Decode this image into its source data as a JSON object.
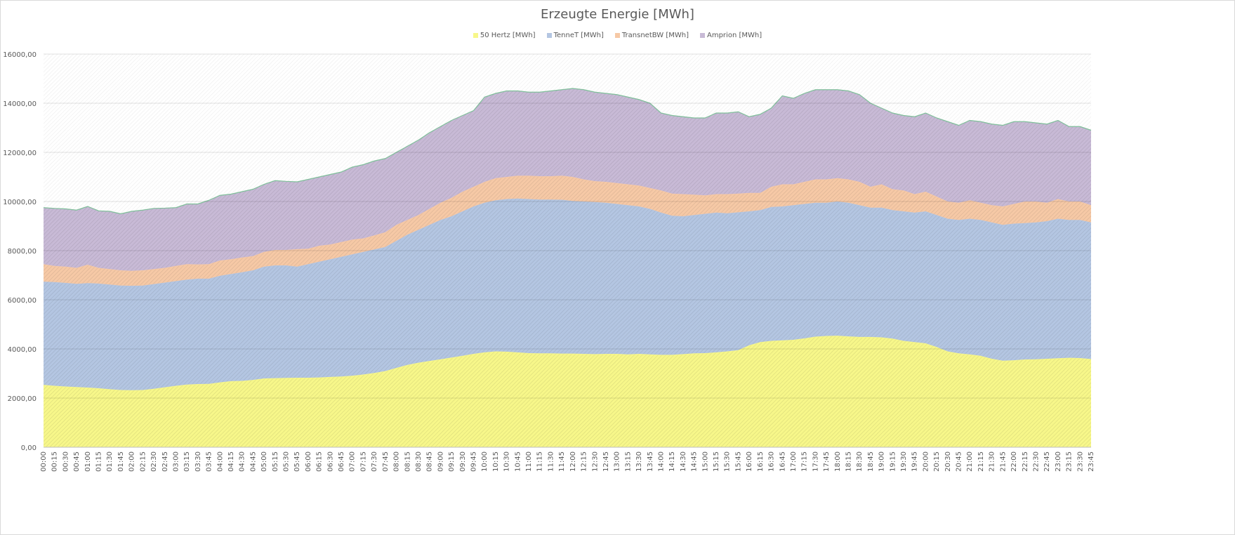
{
  "chart_data": {
    "type": "area",
    "stacked": true,
    "title": "Erzeugte Energie [MWh]",
    "xlabel": "",
    "ylabel": "",
    "ylim": [
      0,
      16000
    ],
    "yticks": [
      "0,00",
      "2000,00",
      "4000,00",
      "6000,00",
      "8000,00",
      "10000,00",
      "12000,00",
      "14000,00",
      "16000,00"
    ],
    "grid": true,
    "legend_position": "top",
    "categories": [
      "00:00",
      "00:15",
      "00:30",
      "00:45",
      "01:00",
      "01:15",
      "01:30",
      "01:45",
      "02:00",
      "02:15",
      "02:30",
      "02:45",
      "03:00",
      "03:15",
      "03:30",
      "03:45",
      "04:00",
      "04:15",
      "04:30",
      "04:45",
      "05:00",
      "05:15",
      "05:30",
      "05:45",
      "06:00",
      "06:15",
      "06:30",
      "06:45",
      "07:00",
      "07:15",
      "07:30",
      "07:45",
      "08:00",
      "08:15",
      "08:30",
      "08:45",
      "09:00",
      "09:15",
      "09:30",
      "09:45",
      "10:00",
      "10:15",
      "10:30",
      "10:45",
      "11:00",
      "11:15",
      "11:30",
      "11:45",
      "12:00",
      "12:15",
      "12:30",
      "12:45",
      "13:00",
      "13:15",
      "13:30",
      "13:45",
      "14:00",
      "14:15",
      "14:30",
      "14:45",
      "15:00",
      "15:15",
      "15:30",
      "15:45",
      "16:00",
      "16:15",
      "16:30",
      "16:45",
      "17:00",
      "17:15",
      "17:30",
      "17:45",
      "18:00",
      "18:15",
      "18:30",
      "18:45",
      "19:00",
      "19:15",
      "19:30",
      "19:45",
      "20:00",
      "20:15",
      "20:30",
      "20:45",
      "21:00",
      "21:15",
      "21:30",
      "21:45",
      "22:00",
      "22:15",
      "22:30",
      "22:45",
      "23:00",
      "23:15",
      "23:30",
      "23:45"
    ],
    "series": [
      {
        "name": "50 Hertz [MWh]",
        "color": "#f7f78a",
        "values": [
          2540,
          2500,
          2470,
          2450,
          2430,
          2400,
          2360,
          2330,
          2320,
          2330,
          2380,
          2440,
          2500,
          2550,
          2570,
          2580,
          2640,
          2690,
          2700,
          2740,
          2800,
          2810,
          2820,
          2830,
          2830,
          2840,
          2860,
          2880,
          2910,
          2960,
          3020,
          3100,
          3230,
          3350,
          3440,
          3510,
          3580,
          3650,
          3720,
          3800,
          3860,
          3900,
          3890,
          3860,
          3830,
          3820,
          3820,
          3810,
          3810,
          3800,
          3790,
          3800,
          3800,
          3780,
          3800,
          3780,
          3760,
          3760,
          3790,
          3820,
          3830,
          3860,
          3900,
          3950,
          4150,
          4280,
          4330,
          4350,
          4370,
          4430,
          4500,
          4530,
          4540,
          4510,
          4490,
          4490,
          4470,
          4420,
          4330,
          4280,
          4230,
          4080,
          3900,
          3820,
          3780,
          3720,
          3600,
          3520,
          3540,
          3570,
          3580,
          3600,
          3620,
          3640,
          3630,
          3590
        ]
      },
      {
        "name": "TenneT [MWh]",
        "color": "#b4c6e2",
        "values": [
          4200,
          4220,
          4220,
          4200,
          4250,
          4260,
          4260,
          4250,
          4250,
          4250,
          4260,
          4260,
          4260,
          4270,
          4290,
          4280,
          4340,
          4360,
          4420,
          4460,
          4550,
          4590,
          4580,
          4520,
          4620,
          4710,
          4790,
          4870,
          4940,
          4990,
          5030,
          5050,
          5170,
          5300,
          5410,
          5540,
          5670,
          5750,
          5880,
          6000,
          6090,
          6150,
          6210,
          6260,
          6270,
          6260,
          6260,
          6260,
          6210,
          6200,
          6190,
          6150,
          6100,
          6070,
          6000,
          5920,
          5790,
          5660,
          5610,
          5630,
          5670,
          5690,
          5620,
          5610,
          5450,
          5370,
          5450,
          5450,
          5480,
          5470,
          5450,
          5420,
          5460,
          5440,
          5360,
          5260,
          5280,
          5230,
          5270,
          5270,
          5370,
          5370,
          5400,
          5430,
          5520,
          5530,
          5550,
          5530,
          5560,
          5550,
          5570,
          5600,
          5680,
          5610,
          5620,
          5560
        ]
      },
      {
        "name": "TransnetBW [MWh]",
        "color": "#f6c9a6",
        "values": [
          710,
          660,
          660,
          650,
          750,
          640,
          630,
          620,
          610,
          620,
          610,
          600,
          620,
          630,
          580,
          590,
          620,
          600,
          600,
          580,
          600,
          630,
          630,
          710,
          630,
          650,
          600,
          600,
          600,
          550,
          570,
          600,
          650,
          600,
          600,
          650,
          700,
          750,
          800,
          800,
          850,
          900,
          900,
          930,
          950,
          950,
          950,
          980,
          980,
          900,
          850,
          850,
          850,
          850,
          850,
          850,
          900,
          900,
          900,
          830,
          750,
          750,
          780,
          760,
          750,
          700,
          820,
          900,
          850,
          900,
          950,
          950,
          950,
          950,
          950,
          850,
          950,
          850,
          850,
          750,
          800,
          750,
          700,
          700,
          750,
          700,
          700,
          750,
          800,
          880,
          850,
          750,
          800,
          750,
          750,
          700
        ]
      },
      {
        "name": "Amprion [MWh]",
        "color": "#c8bad6",
        "values": [
          2300,
          2340,
          2350,
          2350,
          2370,
          2320,
          2350,
          2300,
          2420,
          2450,
          2470,
          2430,
          2370,
          2450,
          2460,
          2600,
          2650,
          2650,
          2680,
          2720,
          2750,
          2820,
          2790,
          2740,
          2820,
          2800,
          2850,
          2850,
          2950,
          3000,
          3030,
          3000,
          2950,
          3000,
          3050,
          3100,
          3100,
          3150,
          3100,
          3100,
          3450,
          3450,
          3500,
          3450,
          3400,
          3420,
          3470,
          3500,
          3600,
          3650,
          3620,
          3600,
          3600,
          3550,
          3500,
          3450,
          3150,
          3180,
          3150,
          3120,
          3150,
          3300,
          3300,
          3330,
          3100,
          3200,
          3200,
          3600,
          3500,
          3600,
          3650,
          3650,
          3600,
          3600,
          3550,
          3400,
          3100,
          3100,
          3050,
          3150,
          3200,
          3200,
          3250,
          3150,
          3250,
          3300,
          3300,
          3300,
          3350,
          3250,
          3200,
          3200,
          3200,
          3050,
          3050,
          3050
        ]
      }
    ]
  }
}
